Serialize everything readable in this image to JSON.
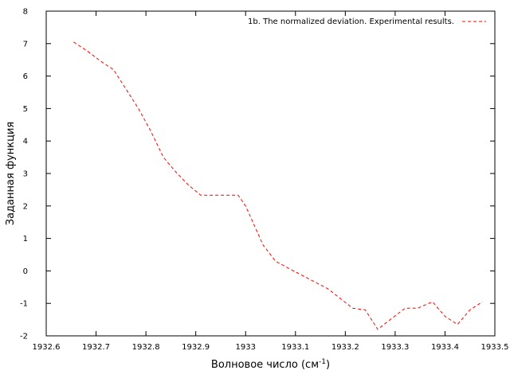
{
  "chart_data": {
    "type": "line",
    "xlabel_main": "Волновое число (см",
    "xlabel_sup": "-1",
    "xlabel_close": ")",
    "ylabel": "Заданная функция",
    "xlim": [
      1932.6,
      1933.5
    ],
    "ylim": [
      -2,
      8
    ],
    "x_ticks": [
      "1932.6",
      "1932.7",
      "1932.8",
      "1932.9",
      "1933",
      "1933.1",
      "1933.2",
      "1933.3",
      "1933.4",
      "1933.5"
    ],
    "y_ticks": [
      "-2",
      "-1",
      "0",
      "1",
      "2",
      "3",
      "4",
      "5",
      "6",
      "7",
      "8"
    ],
    "grid": false,
    "legend_position": "top-right",
    "series": [
      {
        "name": "1b. The normalized deviation. Experimental results.",
        "color": "#ff0000",
        "style": "dashed",
        "x": [
          1932.655,
          1932.68,
          1932.71,
          1932.735,
          1932.76,
          1932.785,
          1932.81,
          1932.835,
          1932.86,
          1932.885,
          1932.91,
          1932.935,
          1932.96,
          1932.985,
          1933.0,
          1933.035,
          1933.06,
          1933.09,
          1933.115,
          1933.14,
          1933.165,
          1933.19,
          1933.215,
          1933.24,
          1933.265,
          1933.29,
          1933.32,
          1933.345,
          1933.375,
          1933.4,
          1933.425,
          1933.45,
          1933.475
        ],
        "y": [
          7.05,
          6.8,
          6.45,
          6.2,
          5.6,
          5.0,
          4.3,
          3.5,
          3.05,
          2.65,
          2.33,
          2.33,
          2.33,
          2.33,
          2.0,
          0.8,
          0.3,
          0.05,
          -0.15,
          -0.35,
          -0.55,
          -0.85,
          -1.15,
          -1.2,
          -1.8,
          -1.5,
          -1.15,
          -1.15,
          -0.95,
          -1.4,
          -1.65,
          -1.2,
          -0.95
        ]
      }
    ]
  }
}
